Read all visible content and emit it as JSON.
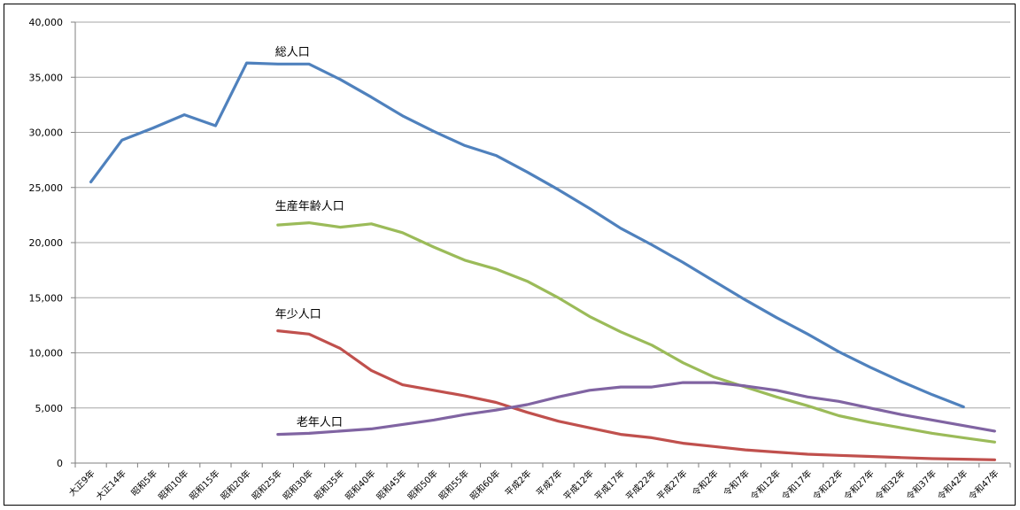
{
  "chart_data": {
    "type": "line",
    "title": "",
    "xlabel": "",
    "ylabel": "",
    "ylim": [
      0,
      40000
    ],
    "yticks": [
      0,
      5000,
      10000,
      15000,
      20000,
      25000,
      30000,
      35000,
      40000
    ],
    "ytick_labels": [
      "0",
      "5,000",
      "10,000",
      "15,000",
      "20,000",
      "25,000",
      "30,000",
      "35,000",
      "40,000"
    ],
    "grid": true,
    "legend": "none (series labeled inline)",
    "categories": [
      "大正9年",
      "大正14年",
      "昭和5年",
      "昭和10年",
      "昭和15年",
      "昭和20年",
      "昭和25年",
      "昭和30年",
      "昭和35年",
      "昭和40年",
      "昭和45年",
      "昭和50年",
      "昭和55年",
      "昭和60年",
      "平成2年",
      "平成7年",
      "平成12年",
      "平成17年",
      "平成22年",
      "平成27年",
      "令和2年",
      "令和7年",
      "令和12年",
      "令和17年",
      "令和22年",
      "令和27年",
      "令和32年",
      "令和37年",
      "令和42年",
      "令和47年"
    ],
    "series": [
      {
        "name": "総人口",
        "color": "#4f81bd",
        "values": [
          25500,
          29300,
          30400,
          31600,
          30600,
          36300,
          36200,
          36200,
          34800,
          33200,
          31500,
          30100,
          28800,
          27900,
          26400,
          24800,
          23100,
          21300,
          19800,
          18200,
          16500,
          14800,
          13200,
          11700,
          10100,
          8700,
          7400,
          6200,
          5100,
          null
        ]
      },
      {
        "name": "生産年齢人口",
        "color": "#9bbb59",
        "values": [
          null,
          null,
          null,
          null,
          null,
          null,
          21600,
          21800,
          21400,
          21700,
          20900,
          19600,
          18400,
          17600,
          16500,
          15000,
          13300,
          11900,
          10700,
          9100,
          7800,
          6900,
          6000,
          5200,
          4300,
          3700,
          3200,
          2700,
          2300,
          1900
        ]
      },
      {
        "name": "年少人口",
        "color": "#c0504d",
        "values": [
          null,
          null,
          null,
          null,
          null,
          null,
          12000,
          11700,
          10400,
          8400,
          7100,
          6600,
          6100,
          5500,
          4600,
          3800,
          3200,
          2600,
          2300,
          1800,
          1500,
          1200,
          1000,
          800,
          700,
          600,
          500,
          400,
          350,
          300
        ]
      },
      {
        "name": "老年人口",
        "color": "#8064a2",
        "values": [
          null,
          null,
          null,
          null,
          null,
          null,
          2600,
          2700,
          2900,
          3100,
          3500,
          3900,
          4400,
          4800,
          5300,
          6000,
          6600,
          6900,
          6900,
          7300,
          7300,
          7000,
          6600,
          6000,
          5600,
          5000,
          4400,
          3900,
          3400,
          2900
        ]
      }
    ]
  }
}
